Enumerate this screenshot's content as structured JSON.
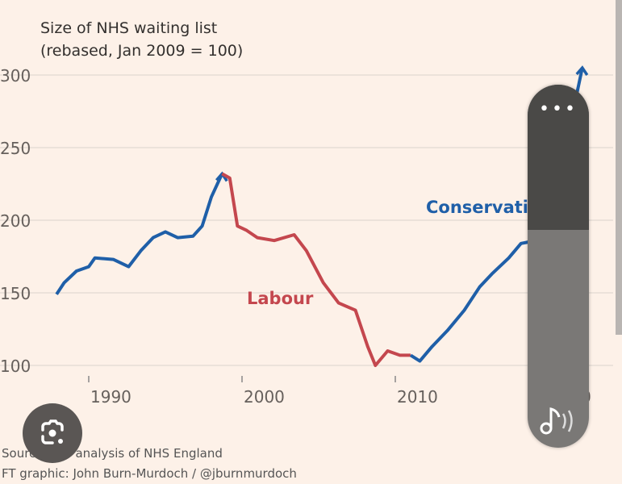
{
  "chart_data": {
    "type": "line",
    "title": "Size of NHS waiting list",
    "subtitle": "(rebased, Jan 2009 = 100)",
    "ylim": [
      100,
      300
    ],
    "yticks": [
      100,
      150,
      200,
      250,
      300
    ],
    "xlim": [
      1986,
      2023
    ],
    "xticks": [
      1990,
      2000,
      2010,
      2020
    ],
    "xtick_labels": [
      "1990",
      "2000",
      "2010",
      "2020"
    ],
    "grid": "horizontal",
    "annotations": [
      {
        "text": "Labour",
        "color": "#c4474e"
      },
      {
        "text": "Conservatives",
        "color": "#1f5fa8"
      }
    ],
    "series": [
      {
        "color": "#1f5fa8",
        "arrow": true,
        "x": [
          1987.9,
          1988.4,
          1989.2,
          1990,
          1990.4,
          1991.6,
          1992.6,
          1993.4,
          1994.2,
          1995,
          1995.8,
          1996.8,
          1997.4,
          1998,
          1998.7
        ],
        "y": [
          149,
          157,
          165,
          168,
          174,
          173,
          168,
          179,
          188,
          192,
          188,
          189,
          196,
          216,
          232
        ]
      },
      {
        "name": "Labour",
        "color": "#c4474e",
        "x": [
          1998.7,
          1999.2,
          1999.7,
          2000.3,
          2001,
          2002.1,
          2003.4,
          2004.2,
          2005.3,
          2006.3,
          2007.4,
          2008.2,
          2008.7,
          2009.5,
          2010.3,
          2011
        ],
        "y": [
          232,
          229,
          196,
          193,
          188,
          186,
          190,
          179,
          157,
          143,
          138,
          113,
          100,
          110,
          107,
          107
        ]
      },
      {
        "name": "Conservatives",
        "color": "#1f5fa8",
        "arrow": true,
        "x": [
          2011,
          2011.6,
          2012.4,
          2013.4,
          2014.5,
          2015.5,
          2016.3,
          2017.4,
          2018.2,
          2018.7,
          2021,
          2021.8,
          2022.2
        ],
        "y": [
          107,
          103,
          113,
          124,
          138,
          154,
          163,
          174,
          184,
          185,
          260,
          285,
          305
        ]
      }
    ]
  },
  "sources": "Sources: FT analysis of NHS England",
  "credit": "FT graphic: John Burn-Murdoch / @jburnmurdoch",
  "overlay": {
    "lens_icon": "google-lens-icon",
    "volume_level_percent": 60,
    "volume_menu": "more-dots-icon",
    "volume_mode_icon": "music-note-icon"
  }
}
